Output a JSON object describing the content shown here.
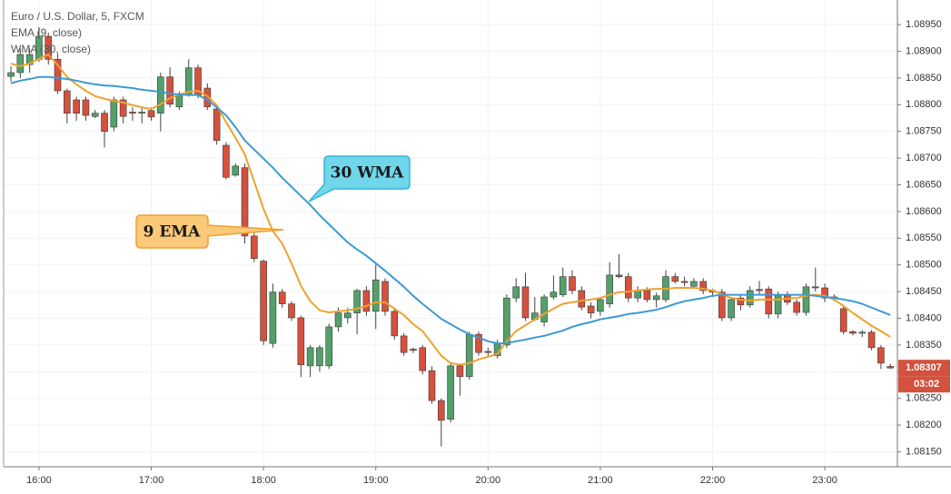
{
  "chart_data": {
    "type": "candlestick",
    "title": "Euro / U.S. Dollar, 5, FXCM",
    "up_color": "#53a06a",
    "down_color": "#d4513d",
    "grid": true,
    "xlim": [
      -0.78,
      94.76
    ],
    "xticks": [
      {
        "value": 3,
        "label": "16:00"
      },
      {
        "value": 15,
        "label": "17:00"
      },
      {
        "value": 27,
        "label": "18:00"
      },
      {
        "value": 39,
        "label": "19:00"
      },
      {
        "value": 51,
        "label": "20:00"
      },
      {
        "value": 63,
        "label": "21:00"
      },
      {
        "value": 75,
        "label": "22:00"
      },
      {
        "value": 87,
        "label": "23:00"
      }
    ],
    "ylim": [
      1.08122,
      1.08996
    ],
    "yticks": [
      {
        "value": 1.0815,
        "label": "1.08150"
      },
      {
        "value": 1.082,
        "label": "1.08200"
      },
      {
        "value": 1.0825,
        "label": "1.08250"
      },
      {
        "value": 1.083,
        "label": "1.08300"
      },
      {
        "value": 1.0835,
        "label": "1.08350"
      },
      {
        "value": 1.084,
        "label": "1.08400"
      },
      {
        "value": 1.0845,
        "label": "1.08450"
      },
      {
        "value": 1.085,
        "label": "1.08500"
      },
      {
        "value": 1.0855,
        "label": "1.08550"
      },
      {
        "value": 1.086,
        "label": "1.08600"
      },
      {
        "value": 1.0865,
        "label": "1.08650"
      },
      {
        "value": 1.087,
        "label": "1.08700"
      },
      {
        "value": 1.0875,
        "label": "1.08750"
      },
      {
        "value": 1.088,
        "label": "1.08800"
      },
      {
        "value": 1.0885,
        "label": "1.08850"
      },
      {
        "value": 1.089,
        "label": "1.08900"
      },
      {
        "value": 1.0895,
        "label": "1.08950"
      }
    ],
    "candles": {
      "open": [
        1.08853,
        1.0886,
        1.08875,
        1.08885,
        1.08928,
        1.08885,
        1.08826,
        1.08809,
        1.08809,
        1.08778,
        1.08784,
        1.08758,
        1.08809,
        1.08786,
        1.08784,
        1.08789,
        1.08784,
        1.08852,
        1.08796,
        1.08818,
        1.08869,
        1.08831,
        1.08792,
        1.08724,
        1.08668,
        1.08682,
        1.08554,
        1.08507,
        1.08353,
        1.08449,
        1.08427,
        1.08401,
        1.08311,
        1.08311,
        1.08311,
        1.08384,
        1.08401,
        1.0841,
        1.08452,
        1.08413,
        1.08469,
        1.08413,
        1.08367,
        1.08342,
        1.08345,
        1.08302,
        1.08246,
        1.08211,
        1.08311,
        1.08291,
        1.0837,
        1.08338,
        1.0833,
        1.0835,
        1.08438,
        1.08459,
        1.08398,
        1.08393,
        1.0844,
        1.08444,
        1.08478,
        1.08452,
        1.08423,
        1.08413,
        1.08427,
        1.08481,
        1.08478,
        1.08438,
        1.08452,
        1.08435,
        1.08435,
        1.08478,
        1.08469,
        1.0846,
        1.08469,
        1.08452,
        1.08449,
        1.08401,
        1.08438,
        1.08425,
        1.08454,
        1.08455,
        1.08408,
        1.08443,
        1.0843,
        1.08411,
        1.08459,
        1.08457,
        1.0844,
        1.08418,
        1.08375,
        1.08372,
        1.08374,
        1.08345,
        1.0831
      ],
      "high": [
        1.08872,
        1.08905,
        1.08905,
        1.08945,
        1.08935,
        1.08895,
        1.0883,
        1.08815,
        1.08815,
        1.0879,
        1.0879,
        1.08815,
        1.08815,
        1.08795,
        1.08795,
        1.08795,
        1.0886,
        1.0887,
        1.08825,
        1.08885,
        1.08875,
        1.0884,
        1.088,
        1.0873,
        1.0869,
        1.0869,
        1.0856,
        1.0851,
        1.08465,
        1.08455,
        1.08432,
        1.08405,
        1.0835,
        1.0835,
        1.0839,
        1.0842,
        1.0842,
        1.08455,
        1.0846,
        1.085,
        1.08475,
        1.0842,
        1.08372,
        1.08345,
        1.0835,
        1.0831,
        1.0825,
        1.08315,
        1.08315,
        1.08375,
        1.08375,
        1.08345,
        1.0836,
        1.08445,
        1.08475,
        1.08485,
        1.0844,
        1.08445,
        1.0848,
        1.08495,
        1.0849,
        1.0846,
        1.0843,
        1.0844,
        1.08505,
        1.0852,
        1.08485,
        1.0846,
        1.08458,
        1.08448,
        1.0849,
        1.08485,
        1.08478,
        1.08475,
        1.08475,
        1.08455,
        1.08455,
        1.0844,
        1.08445,
        1.0846,
        1.0847,
        1.0846,
        1.0845,
        1.0845,
        1.08435,
        1.08465,
        1.08495,
        1.08465,
        1.08445,
        1.08422,
        1.08378,
        1.08378,
        1.08378,
        1.0835,
        1.08315
      ],
      "low": [
        1.08843,
        1.0885,
        1.0886,
        1.0888,
        1.08875,
        1.0882,
        1.08765,
        1.0877,
        1.0877,
        1.08775,
        1.0872,
        1.0875,
        1.08765,
        1.0877,
        1.08765,
        1.0877,
        1.0875,
        1.08795,
        1.0879,
        1.08815,
        1.08812,
        1.0879,
        1.08725,
        1.0866,
        1.08665,
        1.0854,
        1.08505,
        1.0835,
        1.08345,
        1.0842,
        1.08395,
        1.0829,
        1.0829,
        1.083,
        1.08305,
        1.08375,
        1.0839,
        1.0837,
        1.08405,
        1.0838,
        1.08405,
        1.0836,
        1.0833,
        1.08335,
        1.08295,
        1.0824,
        1.0816,
        1.08205,
        1.08255,
        1.08285,
        1.0833,
        1.0833,
        1.08325,
        1.08345,
        1.0843,
        1.08395,
        1.08395,
        1.08385,
        1.08435,
        1.0844,
        1.08445,
        1.08415,
        1.084,
        1.08405,
        1.0842,
        1.08475,
        1.0843,
        1.0843,
        1.0843,
        1.0842,
        1.0843,
        1.08465,
        1.0846,
        1.08455,
        1.08445,
        1.0844,
        1.08395,
        1.08395,
        1.08415,
        1.0842,
        1.08445,
        1.084,
        1.084,
        1.08425,
        1.08405,
        1.08405,
        1.0845,
        1.0843,
        1.08432,
        1.0837,
        1.08368,
        1.08365,
        1.0834,
        1.08305,
        1.08305
      ],
      "close": [
        1.0886,
        1.08894,
        1.08894,
        1.08928,
        1.08885,
        1.08826,
        1.08784,
        1.08784,
        1.0878,
        1.08784,
        1.0875,
        1.08809,
        1.08778,
        1.08784,
        1.08786,
        1.08777,
        1.08852,
        1.08801,
        1.08818,
        1.08869,
        1.08818,
        1.08796,
        1.08733,
        1.08664,
        1.08685,
        1.08554,
        1.08512,
        1.08358,
        1.08449,
        1.08427,
        1.08401,
        1.08313,
        1.08345,
        1.08345,
        1.08384,
        1.0841,
        1.0841,
        1.08452,
        1.08413,
        1.08472,
        1.08413,
        1.08367,
        1.08336,
        1.0834,
        1.08302,
        1.08246,
        1.08209,
        1.08311,
        1.08291,
        1.0837,
        1.08336,
        1.08336,
        1.08353,
        1.08438,
        1.08459,
        1.08401,
        1.0841,
        1.0844,
        1.08449,
        1.08478,
        1.08452,
        1.08421,
        1.0841,
        1.08435,
        1.08481,
        1.08478,
        1.08438,
        1.08452,
        1.08435,
        1.08442,
        1.08478,
        1.08469,
        1.08467,
        1.08469,
        1.08452,
        1.08449,
        1.08401,
        1.08435,
        1.08425,
        1.08452,
        1.08452,
        1.08408,
        1.08443,
        1.0843,
        1.08411,
        1.08459,
        1.08457,
        1.08438,
        1.08438,
        1.08375,
        1.08372,
        1.08374,
        1.08345,
        1.08316,
        1.08307
      ]
    },
    "series": [
      {
        "name": "EMA (9, close)",
        "type": "line",
        "color": "#eea22f",
        "values": [
          1.08877,
          1.08872,
          1.08877,
          1.08886,
          1.08894,
          1.08874,
          1.08852,
          1.08838,
          1.08826,
          1.08816,
          1.08811,
          1.08807,
          1.08804,
          1.08799,
          1.08795,
          1.08792,
          1.08801,
          1.08812,
          1.08819,
          1.08824,
          1.08826,
          1.08816,
          1.08799,
          1.08767,
          1.08738,
          1.08707,
          1.08656,
          1.08605,
          1.08563,
          1.0854,
          1.08503,
          1.08461,
          1.08432,
          1.08415,
          1.08411,
          1.08413,
          1.08415,
          1.08418,
          1.08423,
          1.0843,
          1.0843,
          1.08418,
          1.08406,
          1.08389,
          1.08376,
          1.08353,
          1.0833,
          1.08316,
          1.08313,
          1.08316,
          1.08323,
          1.08328,
          1.08333,
          1.08357,
          1.08376,
          1.08387,
          1.08398,
          1.08408,
          1.08418,
          1.08427,
          1.0843,
          1.08433,
          1.08435,
          1.08438,
          1.08444,
          1.08449,
          1.0845,
          1.08452,
          1.08454,
          1.08455,
          1.08455,
          1.08457,
          1.08457,
          1.08457,
          1.08455,
          1.08452,
          1.08445,
          1.08438,
          1.08435,
          1.08433,
          1.08435,
          1.08435,
          1.08435,
          1.08437,
          1.08438,
          1.08442,
          1.08444,
          1.08442,
          1.08435,
          1.08423,
          1.0841,
          1.08398,
          1.08386,
          1.08376,
          1.08365
        ]
      },
      {
        "name": "WMA (30, close)",
        "type": "line",
        "color": "#3d9ad1",
        "values": [
          1.0884,
          1.08845,
          1.08848,
          1.08852,
          1.08852,
          1.0885,
          1.08848,
          1.08845,
          1.08841,
          1.08838,
          1.08836,
          1.08835,
          1.08833,
          1.08831,
          1.08828,
          1.08826,
          1.08824,
          1.08821,
          1.08819,
          1.08818,
          1.08818,
          1.08809,
          1.08795,
          1.0878,
          1.08758,
          1.08733,
          1.08716,
          1.08699,
          1.08682,
          1.08663,
          1.08646,
          1.08629,
          1.08612,
          1.08593,
          1.08576,
          1.08559,
          1.08542,
          1.08529,
          1.08517,
          1.08503,
          1.08489,
          1.08474,
          1.08459,
          1.08442,
          1.08427,
          1.08413,
          1.08399,
          1.08389,
          1.08379,
          1.0837,
          1.08364,
          1.08357,
          1.08353,
          1.08353,
          1.08357,
          1.0836,
          1.08364,
          1.08367,
          1.08372,
          1.08377,
          1.08384,
          1.08389,
          1.08393,
          1.08398,
          1.08401,
          1.08404,
          1.08408,
          1.0841,
          1.08413,
          1.08416,
          1.08421,
          1.08427,
          1.08432,
          1.08435,
          1.08438,
          1.08442,
          1.08444,
          1.08444,
          1.08444,
          1.08444,
          1.08444,
          1.08444,
          1.08444,
          1.08444,
          1.08444,
          1.08444,
          1.08442,
          1.0844,
          1.08438,
          1.08435,
          1.08432,
          1.08427,
          1.0842,
          1.08413,
          1.08406
        ]
      }
    ],
    "annotations": [
      "30 WMA",
      "9 EMA"
    ],
    "last_price": {
      "value": 1.08307,
      "label": "1.08307"
    },
    "countdown": "03:02"
  }
}
